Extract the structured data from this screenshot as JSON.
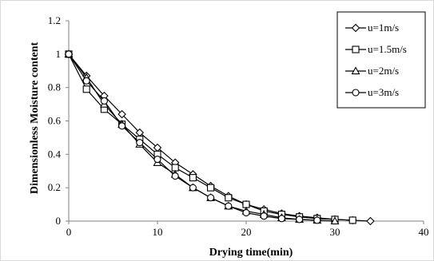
{
  "chart_data": {
    "type": "line",
    "title": "",
    "xlabel": "Drying time(min)",
    "ylabel": "Dimensionless Moisture content",
    "xlim": [
      0,
      40
    ],
    "ylim": [
      0,
      1.2
    ],
    "xticks": [
      "0",
      "10",
      "20",
      "30",
      "40"
    ],
    "yticks": [
      "0",
      "0.2",
      "0.4",
      "0.6",
      "0.8",
      "1",
      "1.2"
    ],
    "grid": false,
    "legend_position": "top-right",
    "series": [
      {
        "name": "u=1m/s",
        "marker": "diamond",
        "x": [
          0,
          2,
          4,
          6,
          8,
          10,
          12,
          14,
          16,
          18,
          20,
          22,
          24,
          26,
          28,
          30,
          32,
          34
        ],
        "y": [
          1.0,
          0.87,
          0.75,
          0.64,
          0.53,
          0.44,
          0.35,
          0.28,
          0.21,
          0.15,
          0.1,
          0.07,
          0.045,
          0.03,
          0.02,
          0.01,
          0.005,
          0.0
        ]
      },
      {
        "name": "u=1.5m/s",
        "marker": "square",
        "x": [
          0,
          2,
          4,
          6,
          8,
          10,
          12,
          14,
          16,
          18,
          20,
          22,
          24,
          26,
          28,
          30,
          32
        ],
        "y": [
          1.0,
          0.79,
          0.67,
          0.58,
          0.49,
          0.4,
          0.32,
          0.26,
          0.2,
          0.14,
          0.1,
          0.06,
          0.04,
          0.025,
          0.015,
          0.01,
          0.005
        ]
      },
      {
        "name": "u=2m/s",
        "marker": "triangle",
        "x": [
          0,
          2,
          4,
          6,
          8,
          10,
          12,
          14,
          16,
          18,
          20,
          22,
          24,
          26,
          28,
          30
        ],
        "y": [
          1.0,
          0.86,
          0.7,
          0.58,
          0.46,
          0.35,
          0.28,
          0.2,
          0.14,
          0.09,
          0.06,
          0.04,
          0.02,
          0.01,
          0.005,
          0.0
        ]
      },
      {
        "name": "u=3m/s",
        "marker": "circle",
        "x": [
          0,
          2,
          4,
          6,
          8,
          10,
          12,
          14,
          16,
          18,
          20,
          22,
          24,
          26,
          28
        ],
        "y": [
          1.0,
          0.84,
          0.72,
          0.57,
          0.47,
          0.37,
          0.27,
          0.2,
          0.14,
          0.09,
          0.05,
          0.03,
          0.015,
          0.01,
          0.005
        ]
      }
    ]
  },
  "colors": {
    "series_stroke": "#000000",
    "marker_fill": "#ffffff",
    "axis": "#808080",
    "frame_border": "#d9d9d9",
    "legend_border": "#000000"
  }
}
